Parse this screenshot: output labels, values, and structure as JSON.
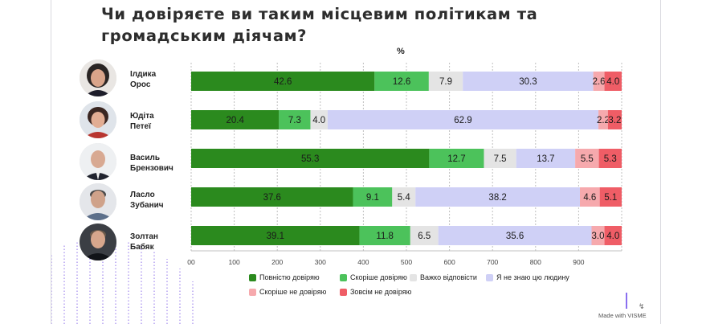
{
  "title": "Чи довіряєте ви таким місцевим політикам та громадським діячам?",
  "percent_label": "%",
  "people": [
    {
      "first": "Ілдика",
      "last": "Орос",
      "avatar": "woman-dark-hair-avatar"
    },
    {
      "first": "Юдіта",
      "last": "Петеї",
      "avatar": "woman-dark-hair-avatar"
    },
    {
      "first": "Василь",
      "last": "Брензович",
      "avatar": "man-bald-avatar"
    },
    {
      "first": "Ласло",
      "last": "Зубанич",
      "avatar": "man-short-hair-avatar"
    },
    {
      "first": "Золтан",
      "last": "Бабяк",
      "avatar": "man-short-hair-avatar"
    }
  ],
  "chart_data": {
    "type": "bar",
    "orientation": "horizontal",
    "stacked": true,
    "title": "Чи довіряєте ви таким місцевим політикам та громадським діячам?",
    "ylabel": "%",
    "categories": [
      "Ілдика Орос",
      "Юдіта Петеї",
      "Василь Брензович",
      "Ласло Зубанич",
      "Золтан Бабяк"
    ],
    "series": [
      {
        "name": "Повністю довіряю",
        "color": "#2b8a1e",
        "values": [
          42.6,
          20.4,
          55.3,
          37.6,
          39.1
        ]
      },
      {
        "name": "Скоріше довіряю",
        "color": "#4cc25b",
        "values": [
          12.6,
          7.3,
          12.7,
          9.1,
          11.8
        ]
      },
      {
        "name": "Важко відповісти",
        "color": "#e4e4e4",
        "values": [
          7.9,
          4.0,
          7.5,
          5.4,
          6.5
        ]
      },
      {
        "name": "Я не знаю цю людину",
        "color": "#cfd0f6",
        "values": [
          30.3,
          62.9,
          13.7,
          38.2,
          35.6
        ]
      },
      {
        "name": "Скоріше не довіряю",
        "color": "#f6a9ad",
        "values": [
          2.6,
          2.2,
          5.5,
          4.6,
          3.0
        ]
      },
      {
        "name": "Зовсім не довіряю",
        "color": "#ef5d66",
        "values": [
          4.0,
          3.2,
          5.3,
          5.1,
          4.0
        ]
      }
    ],
    "x_ticks": [
      "00",
      "100",
      "200",
      "300",
      "400",
      "500",
      "600",
      "700",
      "800",
      "900"
    ],
    "xlim": [
      0,
      1000
    ],
    "scale_note": "bars drawn at 10x the percentage value",
    "grid": true,
    "legend_position": "bottom"
  },
  "footer": {
    "made_with": "Made with VISME"
  }
}
